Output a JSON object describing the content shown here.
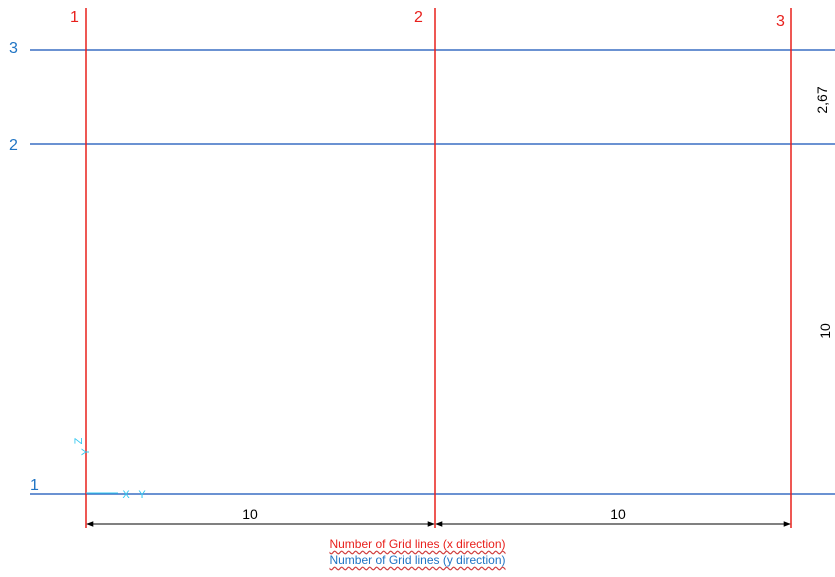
{
  "grid": {
    "colors": {
      "x_lines": "#e8201c",
      "y_lines": "#3a6fc4",
      "dimension": "#000000",
      "axis_marker": "#33c8f0"
    },
    "x_lines": [
      {
        "label": "1",
        "position": 0
      },
      {
        "label": "2",
        "position": 10
      },
      {
        "label": "3",
        "position": 20
      }
    ],
    "y_lines": [
      {
        "label": "1",
        "position": 0
      },
      {
        "label": "2",
        "position": 10
      },
      {
        "label": "3",
        "position": 12.67
      }
    ],
    "dimensions_x": [
      "10",
      "10"
    ],
    "dimensions_y": [
      "10",
      "2,67"
    ],
    "axis_labels": {
      "x": "X",
      "y": "Y",
      "z": "Z"
    }
  },
  "legend": {
    "x_direction": "Number of Grid lines (x direction)",
    "y_direction": "Number of Grid lines (y direction)"
  }
}
